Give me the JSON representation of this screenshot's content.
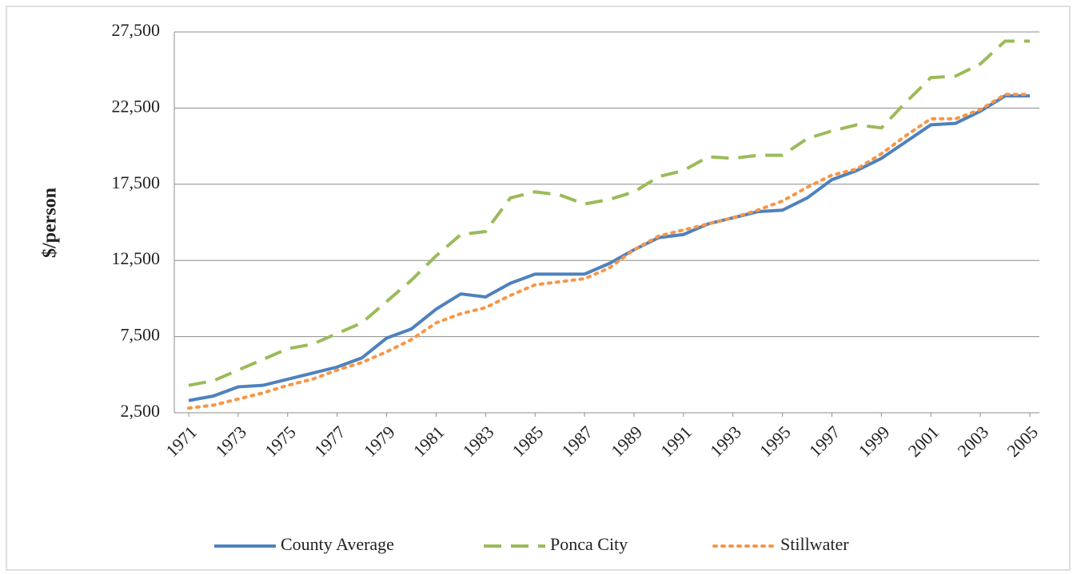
{
  "chart_data": {
    "type": "line",
    "y_label": "$/person",
    "x": [
      1971,
      1972,
      1973,
      1974,
      1975,
      1976,
      1977,
      1978,
      1979,
      1980,
      1981,
      1982,
      1983,
      1984,
      1985,
      1986,
      1987,
      1988,
      1989,
      1990,
      1991,
      1992,
      1993,
      1994,
      1995,
      1996,
      1997,
      1998,
      1999,
      2000,
      2001,
      2002,
      2003,
      2004,
      2005
    ],
    "xlim": [
      1971,
      2005
    ],
    "xticks": [
      1971,
      1973,
      1975,
      1977,
      1979,
      1981,
      1983,
      1985,
      1987,
      1989,
      1991,
      1993,
      1995,
      1997,
      1999,
      2001,
      2003,
      2005
    ],
    "ylim": [
      2500,
      27500
    ],
    "yticks": [
      {
        "value": 2500,
        "label": "2,500"
      },
      {
        "value": 7500,
        "label": "7,500"
      },
      {
        "value": 12500,
        "label": "12,500"
      },
      {
        "value": 17500,
        "label": "17,500"
      },
      {
        "value": 22500,
        "label": "22,500"
      },
      {
        "value": 27500,
        "label": "27,500"
      }
    ],
    "grid": true,
    "legend": "bottom",
    "series": [
      {
        "name": "County Average",
        "color": "#4f81bd",
        "dash": "solid",
        "values": [
          3300,
          3600,
          4200,
          4300,
          4700,
          5100,
          5500,
          6100,
          7400,
          8000,
          9300,
          10300,
          10100,
          11000,
          11600,
          11600,
          11600,
          12300,
          13200,
          14000,
          14200,
          14900,
          15300,
          15700,
          15800,
          16600,
          17800,
          18400,
          19200,
          20300,
          21400,
          21500,
          22300,
          23300,
          23300
        ]
      },
      {
        "name": "Ponca City",
        "color": "#9bbb59",
        "dash": "dashed",
        "values": [
          4300,
          4600,
          5300,
          6000,
          6700,
          7000,
          7700,
          8400,
          9800,
          11200,
          12800,
          14200,
          14400,
          16600,
          17000,
          16800,
          16200,
          16500,
          17000,
          18000,
          18400,
          19300,
          19200,
          19400,
          19400,
          20500,
          21000,
          21400,
          21200,
          22900,
          24500,
          24600,
          25400,
          26900,
          26900
        ]
      },
      {
        "name": "Stillwater",
        "color": "#f79646",
        "dash": "dotted",
        "values": [
          2800,
          3000,
          3400,
          3800,
          4300,
          4700,
          5300,
          5800,
          6500,
          7300,
          8400,
          9000,
          9400,
          10200,
          10900,
          11100,
          11300,
          12000,
          13200,
          14100,
          14500,
          14900,
          15300,
          15800,
          16400,
          17300,
          18100,
          18500,
          19500,
          20700,
          21800,
          21800,
          22400,
          23400,
          23400
        ]
      }
    ]
  }
}
